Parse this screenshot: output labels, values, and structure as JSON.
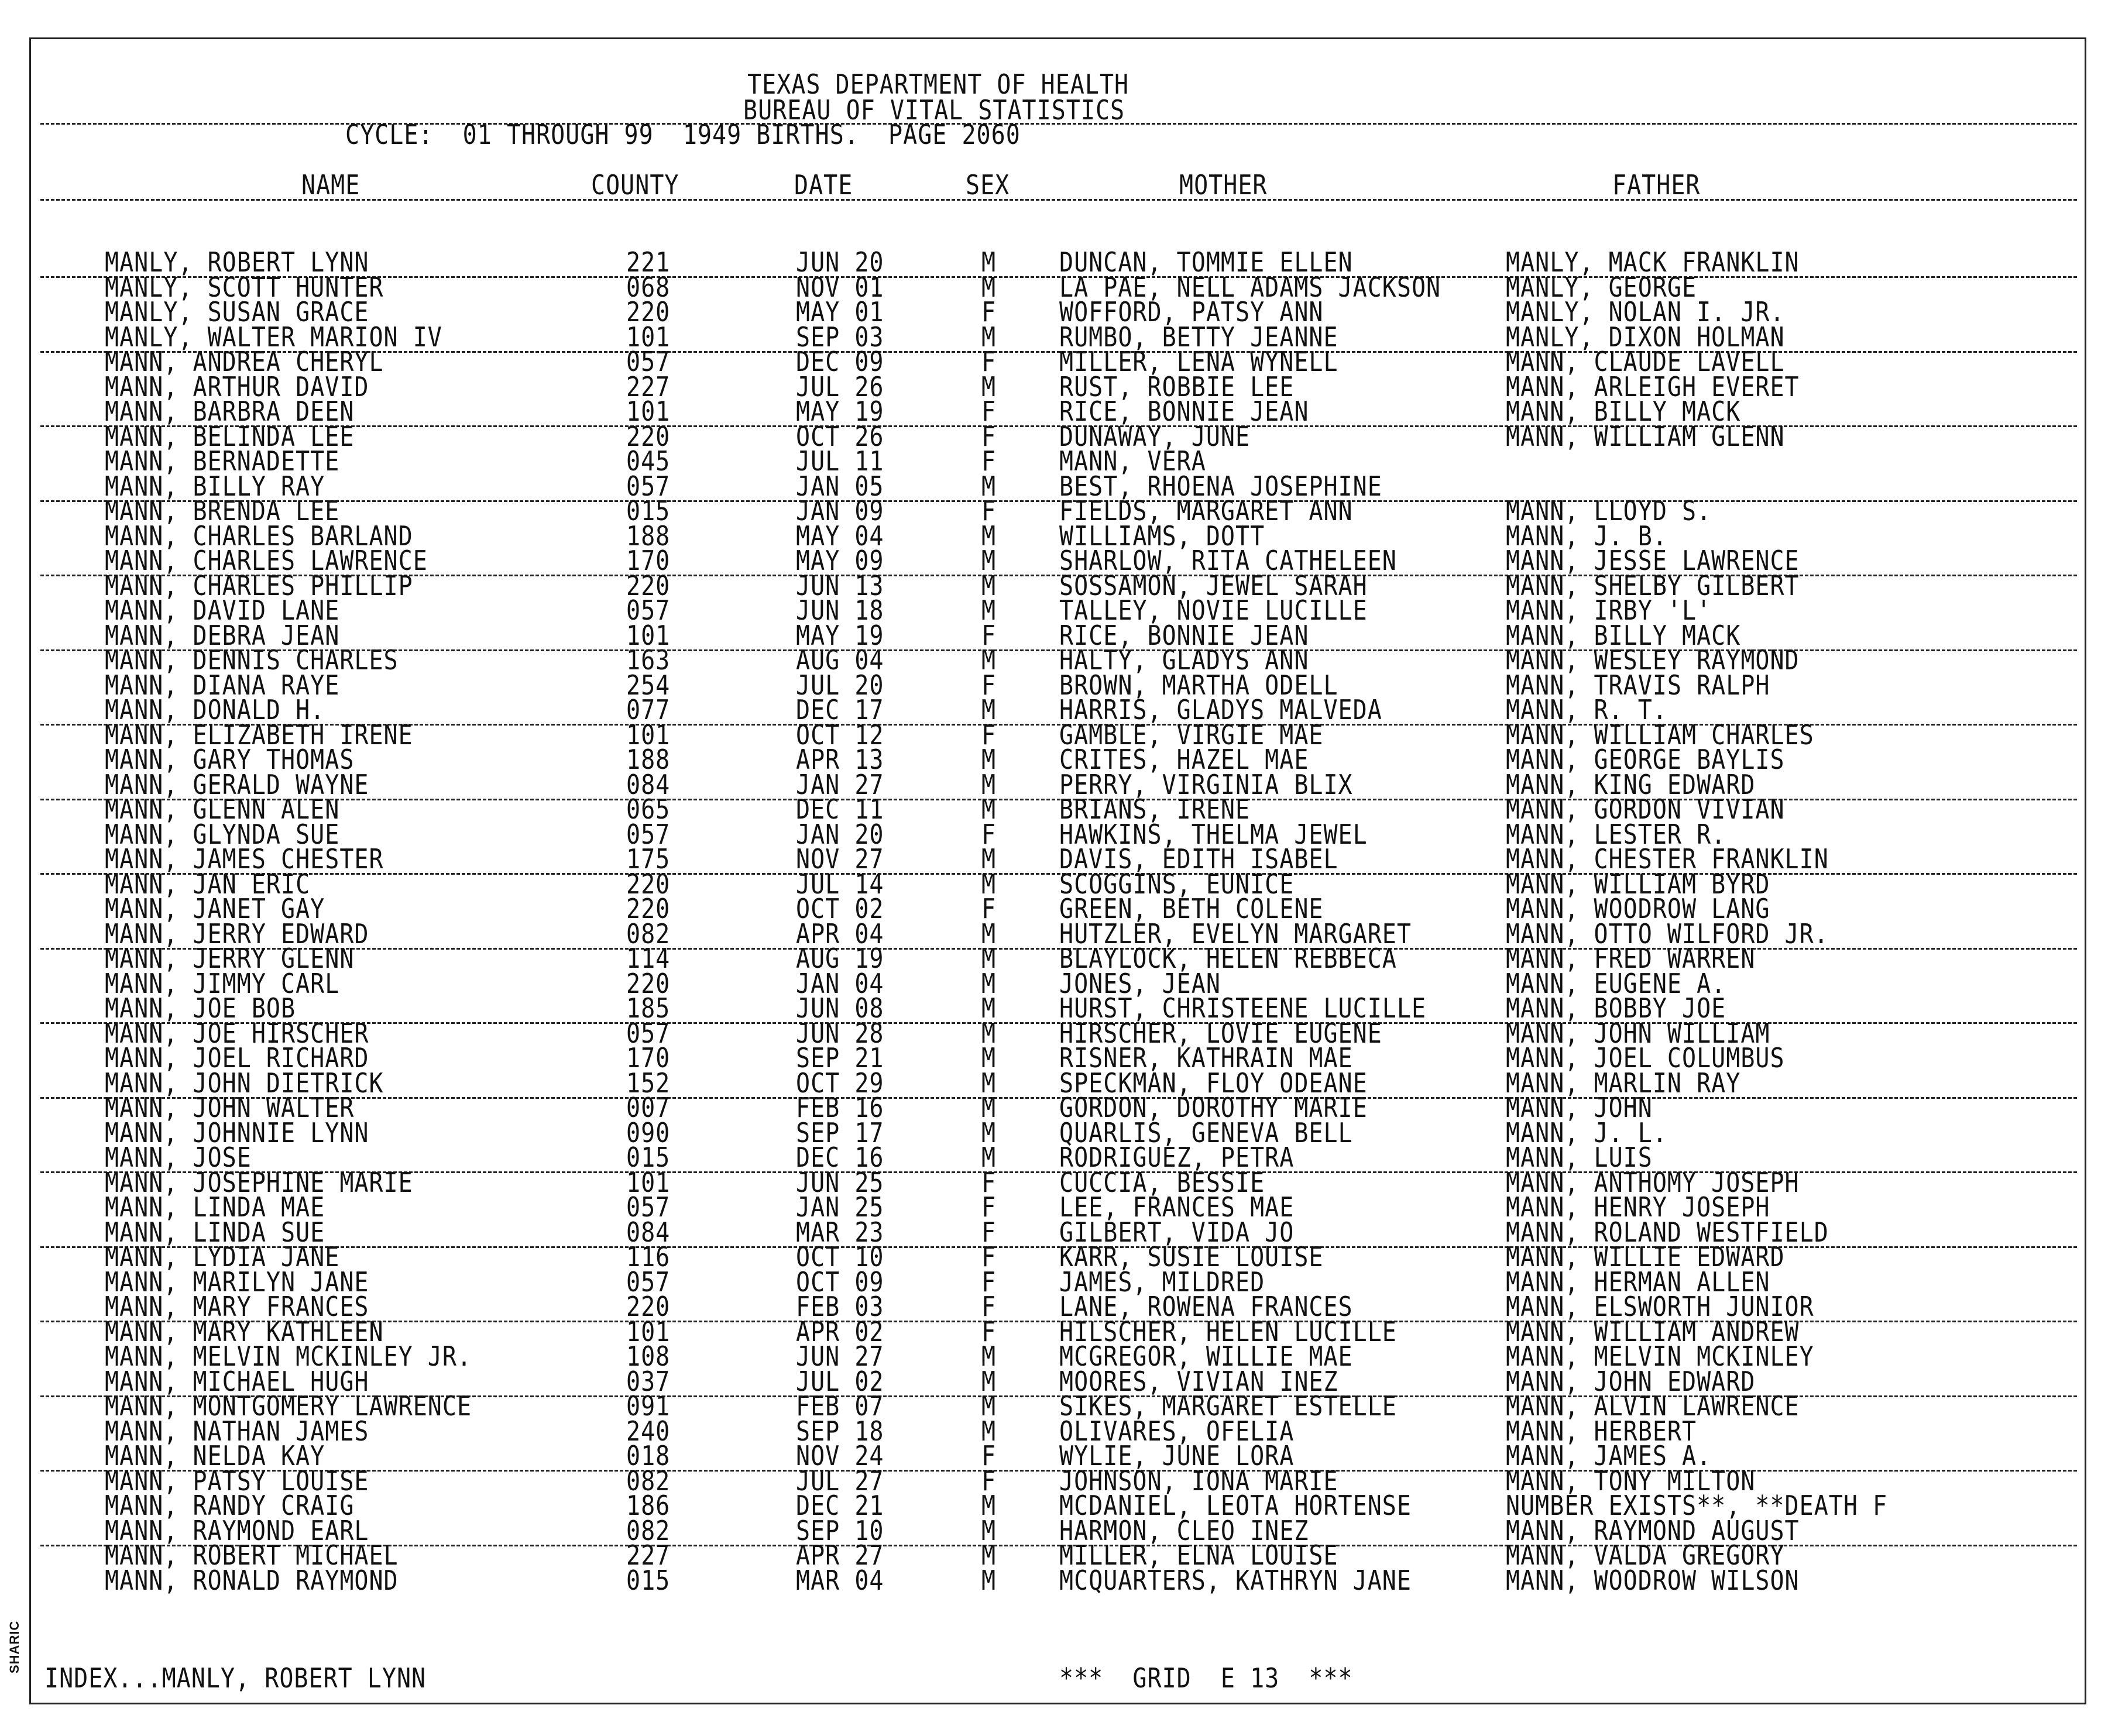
{
  "header": {
    "line1": "TEXAS DEPARTMENT OF HEALTH",
    "line2": "BUREAU OF VITAL STATISTICS",
    "cycle": "CYCLE:  01 THROUGH 99  1949 BIRTHS.  PAGE 2060"
  },
  "columns": {
    "name": "NAME",
    "county": "COUNTY",
    "date": "DATE",
    "sex": "SEX",
    "mother": "MOTHER",
    "father": "FATHER"
  },
  "rows": [
    [
      "MANLY, ROBERT LYNN",
      "221",
      "JUN 20",
      "M",
      "DUNCAN, TOMMIE ELLEN",
      "MANLY, MACK FRANKLIN"
    ],
    [
      "MANLY, SCOTT HUNTER",
      "068",
      "NOV 01",
      "M",
      "LA PAE, NELL ADAMS JACKSON",
      "MANLY, GEORGE"
    ],
    [
      "MANLY, SUSAN GRACE",
      "220",
      "MAY 01",
      "F",
      "WOFFORD, PATSY ANN",
      "MANLY, NOLAN I. JR."
    ],
    [
      "MANLY, WALTER MARION IV",
      "101",
      "SEP 03",
      "M",
      "RUMBO, BETTY JEANNE",
      "MANLY, DIXON HOLMAN"
    ],
    [
      "MANN, ANDREA CHERYL",
      "057",
      "DEC 09",
      "F",
      "MILLER, LENA WYNELL",
      "MANN, CLAUDE LAVELL"
    ],
    [
      "MANN, ARTHUR DAVID",
      "227",
      "JUL 26",
      "M",
      "RUST, ROBBIE LEE",
      "MANN, ARLEIGH EVERET"
    ],
    [
      "MANN, BARBRA DEEN",
      "101",
      "MAY 19",
      "F",
      "RICE, BONNIE JEAN",
      "MANN, BILLY MACK"
    ],
    [
      "MANN, BELINDA LEE",
      "220",
      "OCT 26",
      "F",
      "DUNAWAY, JUNE",
      "MANN, WILLIAM GLENN"
    ],
    [
      "MANN, BERNADETTE",
      "045",
      "JUL 11",
      "F",
      "MANN, VERA",
      ""
    ],
    [
      "MANN, BILLY RAY",
      "057",
      "JAN 05",
      "M",
      "BEST, RHOENA JOSEPHINE",
      ""
    ],
    [
      "MANN, BRENDA LEE",
      "015",
      "JAN 09",
      "F",
      "FIELDS, MARGARET ANN",
      "MANN, LLOYD S."
    ],
    [
      "MANN, CHARLES BARLAND",
      "188",
      "MAY 04",
      "M",
      "WILLIAMS, DOTT",
      "MANN, J. B."
    ],
    [
      "MANN, CHARLES LAWRENCE",
      "170",
      "MAY 09",
      "M",
      "SHARLOW, RITA CATHELEEN",
      "MANN, JESSE LAWRENCE"
    ],
    [
      "MANN, CHARLES PHILLIP",
      "220",
      "JUN 13",
      "M",
      "SOSSAMON, JEWEL SARAH",
      "MANN, SHELBY GILBERT"
    ],
    [
      "MANN, DAVID LANE",
      "057",
      "JUN 18",
      "M",
      "TALLEY, NOVIE LUCILLE",
      "MANN, IRBY 'L'"
    ],
    [
      "MANN, DEBRA JEAN",
      "101",
      "MAY 19",
      "F",
      "RICE, BONNIE JEAN",
      "MANN, BILLY MACK"
    ],
    [
      "MANN, DENNIS CHARLES",
      "163",
      "AUG 04",
      "M",
      "HALTY, GLADYS ANN",
      "MANN, WESLEY RAYMOND"
    ],
    [
      "MANN, DIANA RAYE",
      "254",
      "JUL 20",
      "F",
      "BROWN, MARTHA ODELL",
      "MANN, TRAVIS RALPH"
    ],
    [
      "MANN, DONALD H.",
      "077",
      "DEC 17",
      "M",
      "HARRIS, GLADYS MALVEDA",
      "MANN, R. T."
    ],
    [
      "MANN, ELIZABETH IRENE",
      "101",
      "OCT 12",
      "F",
      "GAMBLE, VIRGIE MAE",
      "MANN, WILLIAM CHARLES"
    ],
    [
      "MANN, GARY THOMAS",
      "188",
      "APR 13",
      "M",
      "CRITES, HAZEL MAE",
      "MANN, GEORGE BAYLIS"
    ],
    [
      "MANN, GERALD WAYNE",
      "084",
      "JAN 27",
      "M",
      "PERRY, VIRGINIA BLIX",
      "MANN, KING EDWARD"
    ],
    [
      "MANN, GLENN ALEN",
      "065",
      "DEC 11",
      "M",
      "BRIANS, IRENE",
      "MANN, GORDON VIVIAN"
    ],
    [
      "MANN, GLYNDA SUE",
      "057",
      "JAN 20",
      "F",
      "HAWKINS, THELMA JEWEL",
      "MANN, LESTER R."
    ],
    [
      "MANN, JAMES CHESTER",
      "175",
      "NOV 27",
      "M",
      "DAVIS, EDITH ISABEL",
      "MANN, CHESTER FRANKLIN"
    ],
    [
      "MANN, JAN ERIC",
      "220",
      "JUL 14",
      "M",
      "SCOGGINS, EUNICE",
      "MANN, WILLIAM BYRD"
    ],
    [
      "MANN, JANET GAY",
      "220",
      "OCT 02",
      "F",
      "GREEN, BETH COLENE",
      "MANN, WOODROW LANG"
    ],
    [
      "MANN, JERRY EDWARD",
      "082",
      "APR 04",
      "M",
      "HUTZLER, EVELYN MARGARET",
      "MANN, OTTO WILFORD JR."
    ],
    [
      "MANN, JERRY GLENN",
      "114",
      "AUG 19",
      "M",
      "BLAYLOCK, HELEN REBBECA",
      "MANN, FRED WARREN"
    ],
    [
      "MANN, JIMMY CARL",
      "220",
      "JAN 04",
      "M",
      "JONES, JEAN",
      "MANN, EUGENE A."
    ],
    [
      "MANN, JOE BOB",
      "185",
      "JUN 08",
      "M",
      "HURST, CHRISTEENE LUCILLE",
      "MANN, BOBBY JOE"
    ],
    [
      "MANN, JOE HIRSCHER",
      "057",
      "JUN 28",
      "M",
      "HIRSCHER, LOVIE EUGENE",
      "MANN, JOHN WILLIAM"
    ],
    [
      "MANN, JOEL RICHARD",
      "170",
      "SEP 21",
      "M",
      "RISNER, KATHRAIN MAE",
      "MANN, JOEL COLUMBUS"
    ],
    [
      "MANN, JOHN DIETRICK",
      "152",
      "OCT 29",
      "M",
      "SPECKMAN, FLOY ODEANE",
      "MANN, MARLIN RAY"
    ],
    [
      "MANN, JOHN WALTER",
      "007",
      "FEB 16",
      "M",
      "GORDON, DOROTHY MARIE",
      "MANN, JOHN"
    ],
    [
      "MANN, JOHNNIE LYNN",
      "090",
      "SEP 17",
      "M",
      "QUARLIS, GENEVA BELL",
      "MANN, J. L."
    ],
    [
      "MANN, JOSE",
      "015",
      "DEC 16",
      "M",
      "RODRIGUEZ, PETRA",
      "MANN, LUIS"
    ],
    [
      "MANN, JOSEPHINE MARIE",
      "101",
      "JUN 25",
      "F",
      "CUCCIA, BESSIE",
      "MANN, ANTHOMY JOSEPH"
    ],
    [
      "MANN, LINDA MAE",
      "057",
      "JAN 25",
      "F",
      "LEE, FRANCES MAE",
      "MANN, HENRY JOSEPH"
    ],
    [
      "MANN, LINDA SUE",
      "084",
      "MAR 23",
      "F",
      "GILBERT, VIDA JO",
      "MANN, ROLAND WESTFIELD"
    ],
    [
      "MANN, LYDIA JANE",
      "116",
      "OCT 10",
      "F",
      "KARR, SUSIE LOUISE",
      "MANN, WILLIE EDWARD"
    ],
    [
      "MANN, MARILYN JANE",
      "057",
      "OCT 09",
      "F",
      "JAMES, MILDRED",
      "MANN, HERMAN ALLEN"
    ],
    [
      "MANN, MARY FRANCES",
      "220",
      "FEB 03",
      "F",
      "LANE, ROWENA FRANCES",
      "MANN, ELSWORTH JUNIOR"
    ],
    [
      "MANN, MARY KATHLEEN",
      "101",
      "APR 02",
      "F",
      "HILSCHER, HELEN LUCILLE",
      "MANN, WILLIAM ANDREW"
    ],
    [
      "MANN, MELVIN MCKINLEY JR.",
      "108",
      "JUN 27",
      "M",
      "MCGREGOR, WILLIE MAE",
      "MANN, MELVIN MCKINLEY"
    ],
    [
      "MANN, MICHAEL HUGH",
      "037",
      "JUL 02",
      "M",
      "MOORES, VIVIAN INEZ",
      "MANN, JOHN EDWARD"
    ],
    [
      "MANN, MONTGOMERY LAWRENCE",
      "091",
      "FEB 07",
      "M",
      "SIKES, MARGARET ESTELLE",
      "MANN, ALVIN LAWRENCE"
    ],
    [
      "MANN, NATHAN JAMES",
      "240",
      "SEP 18",
      "M",
      "OLIVARES, OFELIA",
      "MANN, HERBERT"
    ],
    [
      "MANN, NELDA KAY",
      "018",
      "NOV 24",
      "F",
      "WYLIE, JUNE LORA",
      "MANN, JAMES A."
    ],
    [
      "MANN, PATSY LOUISE",
      "082",
      "JUL 27",
      "F",
      "JOHNSON, IONA MARIE",
      "MANN, TONY MILTON"
    ],
    [
      "MANN, RANDY CRAIG",
      "186",
      "DEC 21",
      "M",
      "MCDANIEL, LEOTA HORTENSE",
      "NUMBER EXISTS**, **DEATH F"
    ],
    [
      "MANN, RAYMOND EARL",
      "082",
      "SEP 10",
      "M",
      "HARMON, CLEO INEZ",
      "MANN, RAYMOND AUGUST"
    ],
    [
      "MANN, ROBERT MICHAEL",
      "227",
      "APR 27",
      "M",
      "MILLER, ELNA LOUISE",
      "MANN, VALDA GREGORY"
    ],
    [
      "MANN, RONALD RAYMOND",
      "015",
      "MAR 04",
      "M",
      "MCQUARTERS, KATHRYN JANE",
      "MANN, WOODROW WILSON"
    ]
  ],
  "footer": {
    "index": "INDEX...MANLY, ROBERT LYNN",
    "grid": "***  GRID  E 13  ***"
  },
  "margin_label": "SHARIC"
}
